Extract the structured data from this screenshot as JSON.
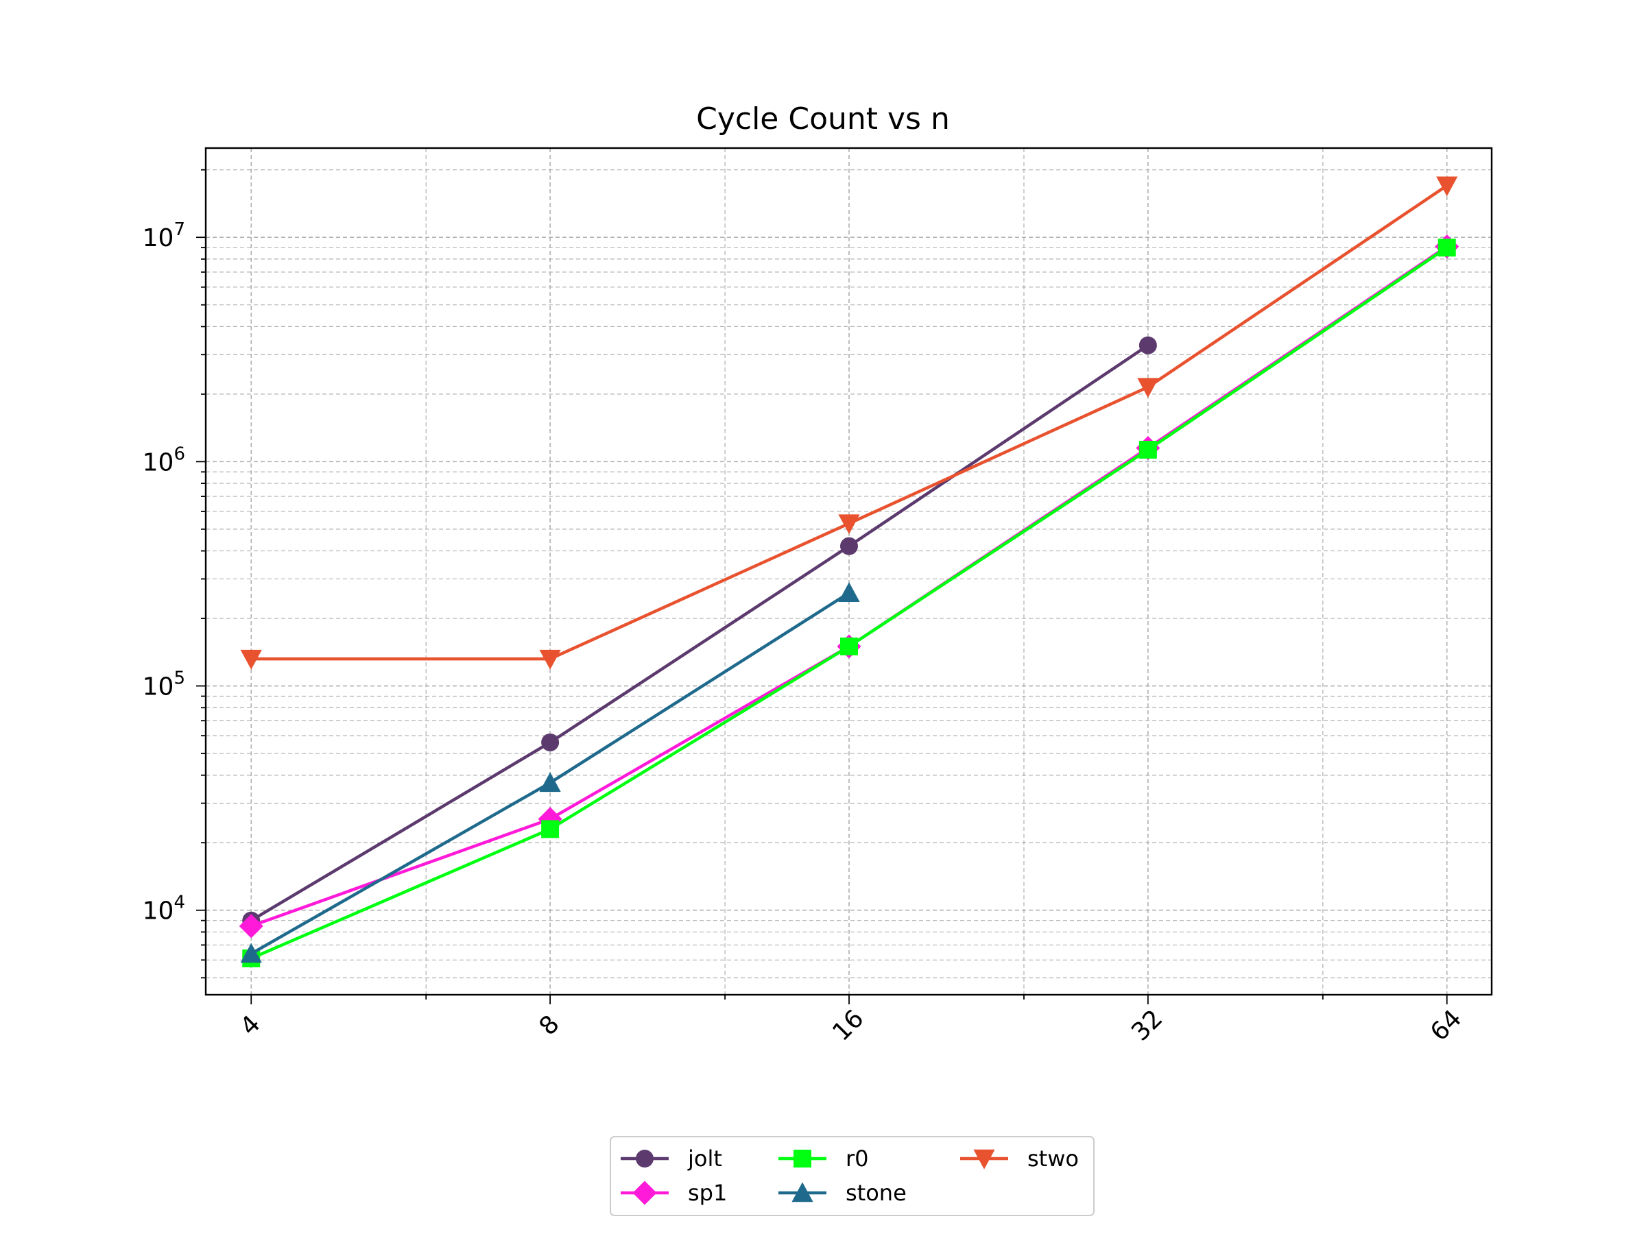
{
  "chart_data": {
    "type": "line",
    "title": "Cycle Count vs n",
    "xlabel": "",
    "ylabel": "",
    "x_scale": "log2",
    "y_scale": "log10",
    "x": [
      4,
      8,
      16,
      32,
      64
    ],
    "x_tick_labels": [
      "4",
      "8",
      "16",
      "32",
      "64"
    ],
    "y_tick_labels": [
      {
        "base": "10",
        "exp": "4"
      },
      {
        "base": "10",
        "exp": "5"
      },
      {
        "base": "10",
        "exp": "6"
      },
      {
        "base": "10",
        "exp": "7"
      }
    ],
    "xlim": [
      3.6,
      71
    ],
    "ylim": [
      4200,
      25000000
    ],
    "grid": true,
    "legend_position": "bottom-center",
    "series": [
      {
        "name": "jolt",
        "color": "#5c3a6e",
        "marker": "circle",
        "values": [
          9000,
          56000,
          420000,
          3300000,
          null
        ]
      },
      {
        "name": "sp1",
        "color": "#ff1ad9",
        "marker": "diamond",
        "values": [
          8500,
          25500,
          150000,
          1150000,
          9100000
        ]
      },
      {
        "name": "r0",
        "color": "#00ff11",
        "marker": "square",
        "values": [
          6100,
          23000,
          150000,
          1130000,
          9000000
        ]
      },
      {
        "name": "stone",
        "color": "#1f6a8c",
        "marker": "triangle-up",
        "values": [
          6400,
          37000,
          260000,
          null,
          null
        ]
      },
      {
        "name": "stwo",
        "color": "#e8522f",
        "marker": "triangle-down",
        "values": [
          132000,
          132000,
          530000,
          2150000,
          17000000
        ]
      }
    ]
  }
}
